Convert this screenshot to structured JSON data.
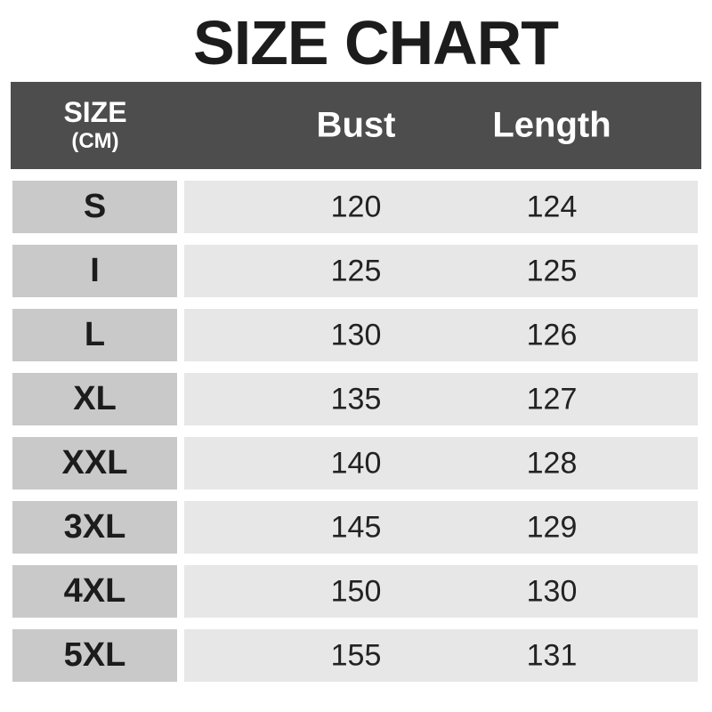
{
  "title": "SIZE CHART",
  "table": {
    "header": {
      "size_label": "SIZE",
      "size_unit": "(CM)",
      "col_bust": "Bust",
      "col_length": "Length"
    },
    "rows": [
      {
        "size": "S",
        "bust": "120",
        "length": "124"
      },
      {
        "size": "I",
        "bust": "125",
        "length": "125"
      },
      {
        "size": "L",
        "bust": "130",
        "length": "126"
      },
      {
        "size": "XL",
        "bust": "135",
        "length": "127"
      },
      {
        "size": "XXL",
        "bust": "140",
        "length": "128"
      },
      {
        "size": "3XL",
        "bust": "145",
        "length": "129"
      },
      {
        "size": "4XL",
        "bust": "150",
        "length": "130"
      },
      {
        "size": "5XL",
        "bust": "155",
        "length": "131"
      }
    ]
  },
  "colors": {
    "header_bg": "#4d4d4d",
    "header_text": "#ffffff",
    "label_bg": "#c9c9c9",
    "label_text": "#1c1c1c",
    "cell_bg": "#e7e7e7",
    "cell_text": "#222222",
    "title_text": "#1c1c1c"
  },
  "chart_data": {
    "type": "table",
    "title": "SIZE CHART",
    "unit": "CM",
    "columns": [
      "SIZE (CM)",
      "Bust",
      "Length"
    ],
    "rows": [
      [
        "S",
        120,
        124
      ],
      [
        "I",
        125,
        125
      ],
      [
        "L",
        130,
        126
      ],
      [
        "XL",
        135,
        127
      ],
      [
        "XXL",
        140,
        128
      ],
      [
        "3XL",
        145,
        129
      ],
      [
        "4XL",
        150,
        130
      ],
      [
        "5XL",
        155,
        131
      ]
    ]
  }
}
